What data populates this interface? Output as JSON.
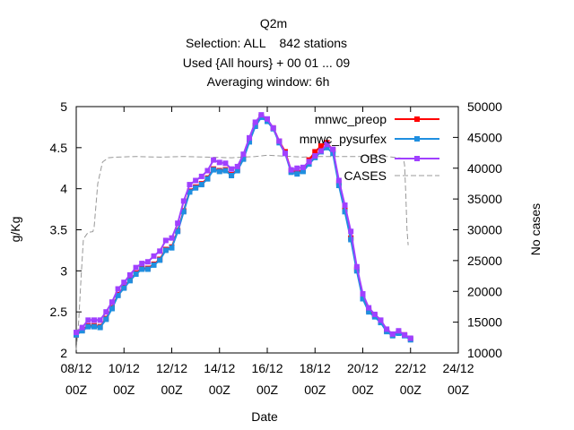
{
  "chart_data": {
    "type": "line",
    "title_lines": [
      "Q2m",
      "Selection: ALL    842 stations",
      "Used {All hours} + 00 01 ... 09",
      "Averaging window:  6h"
    ],
    "xlabel": "Date",
    "ylabel": "g/Kg",
    "y2label": "No cases",
    "x_range": [
      0,
      16
    ],
    "x_unit": "days since 08/12 00Z",
    "ylim": [
      2,
      5
    ],
    "y2lim": [
      10000,
      50000
    ],
    "x_ticks": [
      {
        "pos": 0,
        "line1": "08/12",
        "line2": "00Z"
      },
      {
        "pos": 2,
        "line1": "10/12",
        "line2": "00Z"
      },
      {
        "pos": 4,
        "line1": "12/12",
        "line2": "00Z"
      },
      {
        "pos": 6,
        "line1": "14/12",
        "line2": "00Z"
      },
      {
        "pos": 8,
        "line1": "16/12",
        "line2": "00Z"
      },
      {
        "pos": 10,
        "line1": "18/12",
        "line2": "00Z"
      },
      {
        "pos": 12,
        "line1": "20/12",
        "line2": "00Z"
      },
      {
        "pos": 14,
        "line1": "22/12",
        "line2": "00Z"
      },
      {
        "pos": 16,
        "line1": "24/12",
        "line2": "00Z"
      }
    ],
    "y_ticks": [
      "2",
      "2.5",
      "3",
      "3.5",
      "4",
      "4.5",
      "5"
    ],
    "y2_ticks": [
      "10000",
      "15000",
      "20000",
      "25000",
      "30000",
      "35000",
      "40000",
      "45000",
      "50000"
    ],
    "legend_position": "top-right",
    "grid": false,
    "series": [
      {
        "name": "mnwc_preop",
        "color": "#ff0000",
        "marker": "square",
        "points": [
          [
            0,
            2.22
          ],
          [
            0.25,
            2.28
          ],
          [
            0.5,
            2.33
          ],
          [
            0.75,
            2.33
          ],
          [
            1,
            2.32
          ],
          [
            1.25,
            2.42
          ],
          [
            1.5,
            2.55
          ],
          [
            1.75,
            2.71
          ],
          [
            2,
            2.8
          ],
          [
            2.25,
            2.89
          ],
          [
            2.5,
            2.97
          ],
          [
            2.75,
            3.03
          ],
          [
            3,
            3.03
          ],
          [
            3.25,
            3.08
          ],
          [
            3.5,
            3.14
          ],
          [
            3.75,
            3.26
          ],
          [
            4,
            3.29
          ],
          [
            4.25,
            3.49
          ],
          [
            4.5,
            3.73
          ],
          [
            4.75,
            3.97
          ],
          [
            5,
            4.02
          ],
          [
            5.25,
            4.06
          ],
          [
            5.5,
            4.13
          ],
          [
            5.75,
            4.24
          ],
          [
            6,
            4.22
          ],
          [
            6.25,
            4.23
          ],
          [
            6.5,
            4.17
          ],
          [
            6.75,
            4.23
          ],
          [
            7,
            4.37
          ],
          [
            7.25,
            4.58
          ],
          [
            7.5,
            4.77
          ],
          [
            7.75,
            4.88
          ],
          [
            8,
            4.83
          ],
          [
            8.25,
            4.74
          ],
          [
            8.5,
            4.58
          ],
          [
            8.75,
            4.45
          ],
          [
            9,
            4.22
          ],
          [
            9.25,
            4.2
          ],
          [
            9.5,
            4.23
          ],
          [
            9.75,
            4.35
          ],
          [
            10,
            4.45
          ],
          [
            10.25,
            4.52
          ],
          [
            10.5,
            4.56
          ],
          [
            10.75,
            4.47
          ],
          [
            11,
            4.07
          ],
          [
            11.25,
            3.75
          ],
          [
            11.5,
            3.4
          ],
          [
            11.75,
            3.02
          ],
          [
            12,
            2.68
          ],
          [
            12.25,
            2.52
          ],
          [
            12.5,
            2.46
          ],
          [
            12.75,
            2.39
          ],
          [
            13,
            2.27
          ],
          [
            13.25,
            2.22
          ],
          [
            13.5,
            2.25
          ],
          [
            13.75,
            2.22
          ],
          [
            14,
            2.17
          ]
        ]
      },
      {
        "name": "mnwc_pysurfex",
        "color": "#1f8fe0",
        "marker": "square",
        "points": [
          [
            0,
            2.22
          ],
          [
            0.25,
            2.27
          ],
          [
            0.5,
            2.32
          ],
          [
            0.75,
            2.32
          ],
          [
            1,
            2.31
          ],
          [
            1.25,
            2.41
          ],
          [
            1.5,
            2.54
          ],
          [
            1.75,
            2.7
          ],
          [
            2,
            2.79
          ],
          [
            2.25,
            2.88
          ],
          [
            2.5,
            2.96
          ],
          [
            2.75,
            3.02
          ],
          [
            3,
            3.02
          ],
          [
            3.25,
            3.07
          ],
          [
            3.5,
            3.13
          ],
          [
            3.75,
            3.25
          ],
          [
            4,
            3.28
          ],
          [
            4.25,
            3.48
          ],
          [
            4.5,
            3.72
          ],
          [
            4.75,
            3.96
          ],
          [
            5,
            4.01
          ],
          [
            5.25,
            4.05
          ],
          [
            5.5,
            4.12
          ],
          [
            5.75,
            4.23
          ],
          [
            6,
            4.21
          ],
          [
            6.25,
            4.22
          ],
          [
            6.5,
            4.16
          ],
          [
            6.75,
            4.22
          ],
          [
            7,
            4.36
          ],
          [
            7.25,
            4.57
          ],
          [
            7.5,
            4.76
          ],
          [
            7.75,
            4.87
          ],
          [
            8,
            4.82
          ],
          [
            8.25,
            4.73
          ],
          [
            8.5,
            4.56
          ],
          [
            8.75,
            4.43
          ],
          [
            9,
            4.2
          ],
          [
            9.25,
            4.18
          ],
          [
            9.5,
            4.21
          ],
          [
            9.75,
            4.3
          ],
          [
            10,
            4.38
          ],
          [
            10.25,
            4.45
          ],
          [
            10.5,
            4.5
          ],
          [
            10.75,
            4.43
          ],
          [
            11,
            4.04
          ],
          [
            11.25,
            3.72
          ],
          [
            11.5,
            3.38
          ],
          [
            11.75,
            3.0
          ],
          [
            12,
            2.66
          ],
          [
            12.25,
            2.5
          ],
          [
            12.5,
            2.44
          ],
          [
            12.75,
            2.37
          ],
          [
            13,
            2.26
          ],
          [
            13.25,
            2.21
          ],
          [
            13.5,
            2.24
          ],
          [
            13.75,
            2.21
          ],
          [
            14,
            2.16
          ]
        ]
      },
      {
        "name": "OBS",
        "color": "#a040ff",
        "marker": "square",
        "points": [
          [
            0,
            2.25
          ],
          [
            0.25,
            2.31
          ],
          [
            0.5,
            2.4
          ],
          [
            0.75,
            2.4
          ],
          [
            1,
            2.4
          ],
          [
            1.25,
            2.5
          ],
          [
            1.5,
            2.62
          ],
          [
            1.75,
            2.78
          ],
          [
            2,
            2.86
          ],
          [
            2.25,
            2.95
          ],
          [
            2.5,
            3.04
          ],
          [
            2.75,
            3.09
          ],
          [
            3,
            3.11
          ],
          [
            3.25,
            3.18
          ],
          [
            3.5,
            3.24
          ],
          [
            3.75,
            3.37
          ],
          [
            4,
            3.4
          ],
          [
            4.25,
            3.58
          ],
          [
            4.5,
            3.85
          ],
          [
            4.75,
            4.05
          ],
          [
            5,
            4.1
          ],
          [
            5.25,
            4.15
          ],
          [
            5.5,
            4.22
          ],
          [
            5.75,
            4.35
          ],
          [
            6,
            4.32
          ],
          [
            6.25,
            4.31
          ],
          [
            6.5,
            4.24
          ],
          [
            6.75,
            4.27
          ],
          [
            7,
            4.42
          ],
          [
            7.25,
            4.62
          ],
          [
            7.5,
            4.81
          ],
          [
            7.75,
            4.9
          ],
          [
            8,
            4.85
          ],
          [
            8.25,
            4.74
          ],
          [
            8.5,
            4.58
          ],
          [
            8.75,
            4.43
          ],
          [
            9,
            4.23
          ],
          [
            9.25,
            4.25
          ],
          [
            9.5,
            4.26
          ],
          [
            9.75,
            4.33
          ],
          [
            10,
            4.4
          ],
          [
            10.25,
            4.46
          ],
          [
            10.5,
            4.54
          ],
          [
            10.75,
            4.48
          ],
          [
            11,
            4.1
          ],
          [
            11.25,
            3.8
          ],
          [
            11.5,
            3.48
          ],
          [
            11.75,
            3.05
          ],
          [
            12,
            2.72
          ],
          [
            12.25,
            2.55
          ],
          [
            12.5,
            2.47
          ],
          [
            12.75,
            2.4
          ],
          [
            13,
            2.29
          ],
          [
            13.25,
            2.23
          ],
          [
            13.5,
            2.27
          ],
          [
            13.75,
            2.22
          ],
          [
            14,
            2.18
          ]
        ]
      },
      {
        "name": "CASES",
        "color": "#999999",
        "dashed": true,
        "marker": "none",
        "axis": "y2",
        "points": [
          [
            0,
            10500
          ],
          [
            0.1,
            15000
          ],
          [
            0.2,
            22000
          ],
          [
            0.3,
            28500
          ],
          [
            0.5,
            29600
          ],
          [
            0.7,
            29700
          ],
          [
            0.75,
            30500
          ],
          [
            0.9,
            37500
          ],
          [
            1.1,
            41000
          ],
          [
            1.35,
            41700
          ],
          [
            1.7,
            41800
          ],
          [
            2.5,
            41900
          ],
          [
            3.5,
            41800
          ],
          [
            4.5,
            41900
          ],
          [
            5.5,
            41800
          ],
          [
            6.5,
            41700
          ],
          [
            7.5,
            41900
          ],
          [
            8,
            42100
          ],
          [
            8.5,
            42000
          ],
          [
            9,
            41900
          ],
          [
            9.5,
            41800
          ],
          [
            10,
            41900
          ],
          [
            10.5,
            41900
          ],
          [
            11,
            41900
          ],
          [
            12,
            41900
          ],
          [
            13,
            41900
          ],
          [
            13.7,
            41600
          ],
          [
            13.75,
            40500
          ],
          [
            13.8,
            36000
          ],
          [
            13.85,
            30000
          ],
          [
            13.9,
            27500
          ]
        ]
      }
    ]
  }
}
